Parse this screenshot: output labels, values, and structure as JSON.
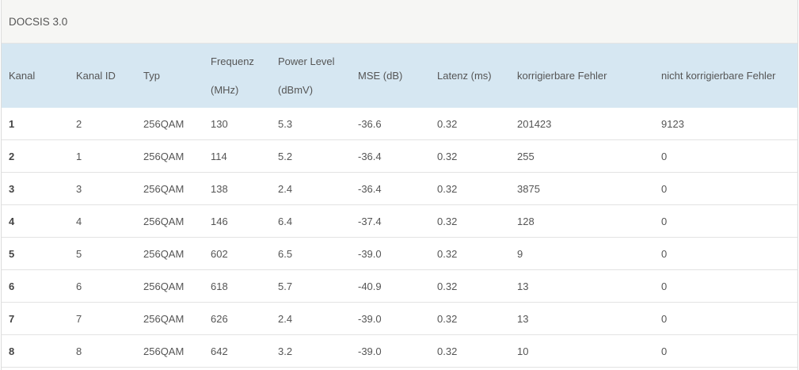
{
  "title": "DOCSIS 3.0",
  "columns": [
    "Kanal",
    "Kanal ID",
    "Typ",
    "Frequenz\n(MHz)",
    "Power Level\n(dBmV)",
    "MSE (dB)",
    "Latenz (ms)",
    "korrigierbare Fehler",
    "nicht korrigierbare Fehler"
  ],
  "rows": [
    [
      "1",
      "2",
      "256QAM",
      "130",
      "5.3",
      "-36.6",
      "0.32",
      "201423",
      "9123"
    ],
    [
      "2",
      "1",
      "256QAM",
      "114",
      "5.2",
      "-36.4",
      "0.32",
      "255",
      "0"
    ],
    [
      "3",
      "3",
      "256QAM",
      "138",
      "2.4",
      "-36.4",
      "0.32",
      "3875",
      "0"
    ],
    [
      "4",
      "4",
      "256QAM",
      "146",
      "6.4",
      "-37.4",
      "0.32",
      "128",
      "0"
    ],
    [
      "5",
      "5",
      "256QAM",
      "602",
      "6.5",
      "-39.0",
      "0.32",
      "9",
      "0"
    ],
    [
      "6",
      "6",
      "256QAM",
      "618",
      "5.7",
      "-40.9",
      "0.32",
      "13",
      "0"
    ],
    [
      "7",
      "7",
      "256QAM",
      "626",
      "2.4",
      "-39.0",
      "0.32",
      "13",
      "0"
    ],
    [
      "8",
      "8",
      "256QAM",
      "642",
      "3.2",
      "-39.0",
      "0.32",
      "10",
      "0"
    ]
  ],
  "colors": {
    "header_bg": "#d6e7f2",
    "title_bg": "#f6f6f4"
  }
}
